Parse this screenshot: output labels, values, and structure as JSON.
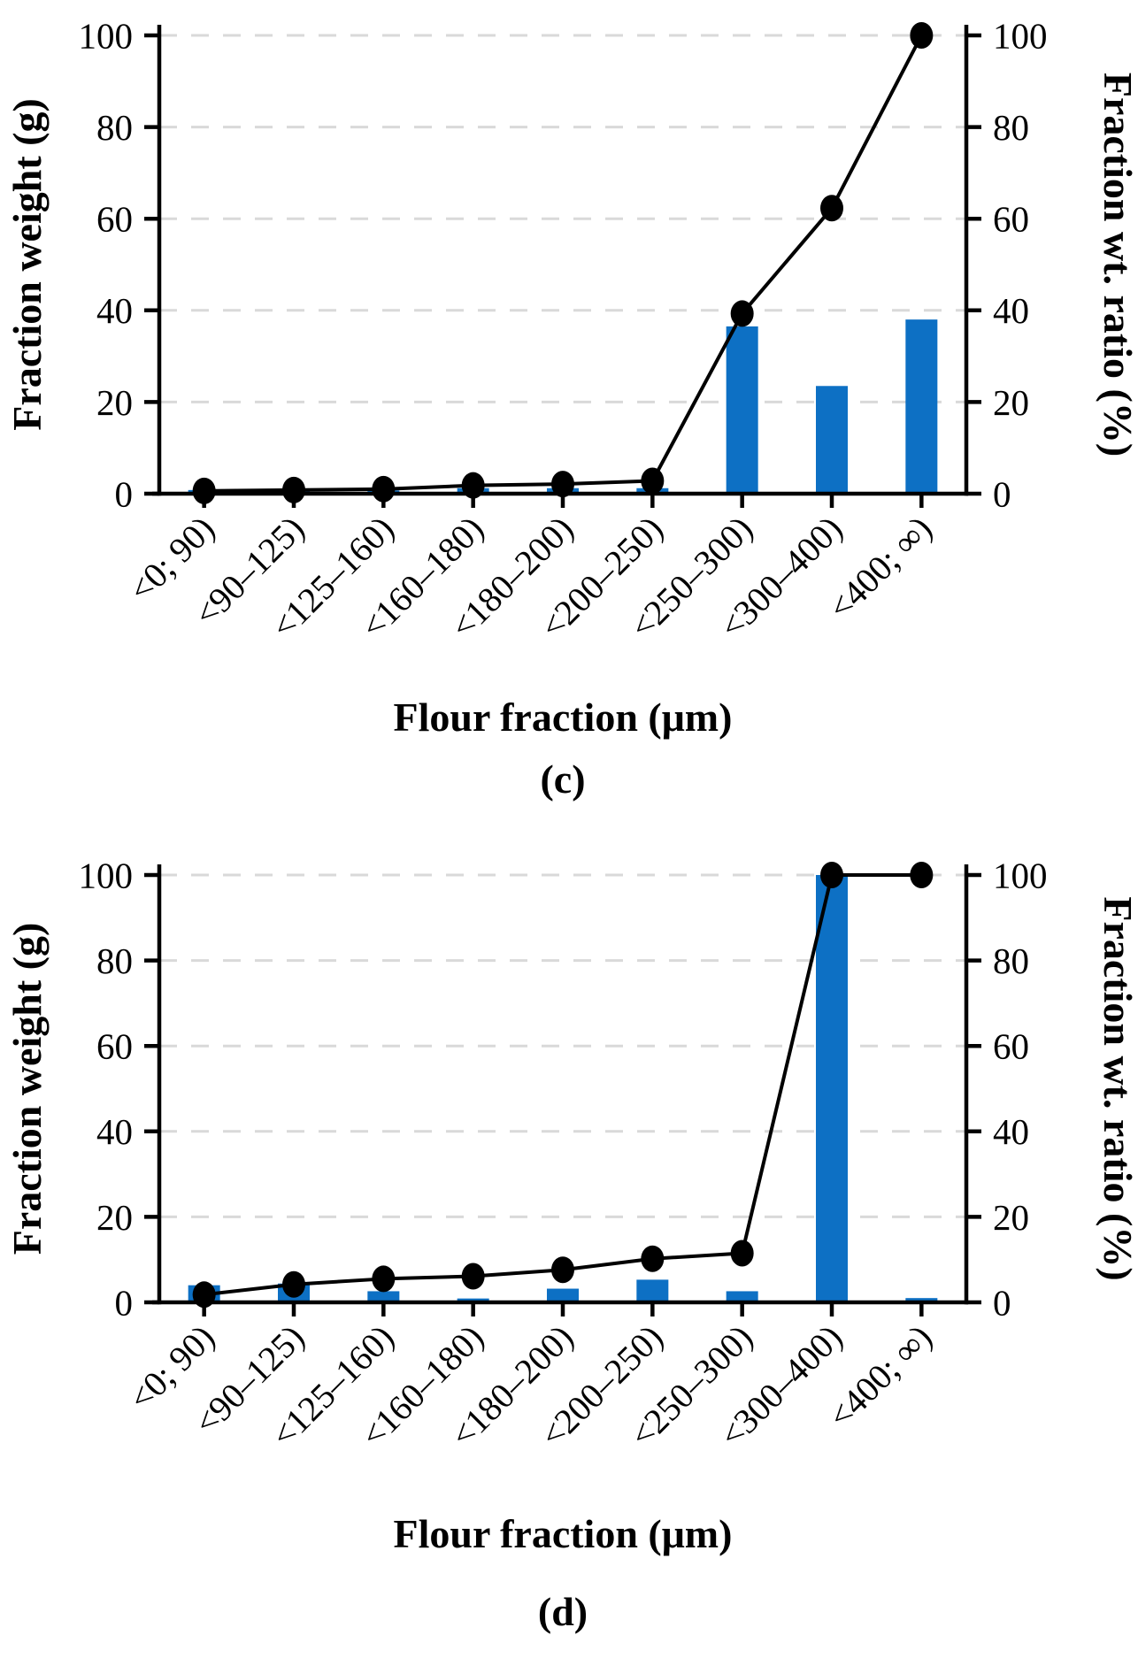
{
  "figure_style": {
    "background": "#ffffff",
    "bar_color": "#0d70c4",
    "grid_color": "#d9d9d9",
    "axis_color": "#000000",
    "line_color": "#000000",
    "marker_color": "#000000",
    "text_color": "#000000"
  },
  "chart_data": [
    {
      "type": "bar",
      "subtype": "dual-axis bar + cumulative line",
      "caption": "(c)",
      "xlabel": "Flour fraction (μm)",
      "ylabel_left": "Fraction weight (g)",
      "ylabel_right": "Fraction wt. ratio (%)",
      "ylim": [
        0,
        100
      ],
      "yticks": [
        0,
        20,
        40,
        60,
        80,
        100
      ],
      "grid": "dashed horizontal gridlines every 20",
      "legend": "none",
      "categories": [
        "<0; 90)",
        "<90–125)",
        "<125–160)",
        "<160–180)",
        "<180–200)",
        "<200–250)",
        "<250–300)",
        "<300–400)",
        "<400; ∞)"
      ],
      "series": [
        {
          "name": "Fraction weight (g)",
          "type": "bar",
          "axis": "left",
          "values": [
            0.8,
            0.8,
            0.7,
            1.2,
            1.2,
            1.2,
            36.5,
            23.5,
            38.0
          ]
        },
        {
          "name": "Fraction wt. ratio (%)",
          "type": "line",
          "axis": "right",
          "marker": "filled-circle",
          "values": [
            0.6,
            0.8,
            1.0,
            1.8,
            2.1,
            2.8,
            39.3,
            62.3,
            100.0
          ]
        }
      ]
    },
    {
      "type": "bar",
      "subtype": "dual-axis bar + cumulative line",
      "caption": "(d)",
      "xlabel": "Flour fraction (μm)",
      "ylabel_left": "Fraction weight (g)",
      "ylabel_right": "Fraction wt. ratio (%)",
      "ylim": [
        0,
        100
      ],
      "yticks": [
        0,
        20,
        40,
        60,
        80,
        100
      ],
      "grid": "dashed horizontal gridlines every 20",
      "legend": "none",
      "categories": [
        "<0; 90)",
        "<90–125)",
        "<125–160)",
        "<160–180)",
        "<180–200)",
        "<200–250)",
        "<250–300)",
        "<300–400)",
        "<400; ∞)"
      ],
      "series": [
        {
          "name": "Fraction weight (g)",
          "type": "bar",
          "axis": "left",
          "values": [
            4.0,
            4.4,
            2.6,
            0.9,
            3.2,
            5.3,
            2.6,
            100.0,
            1.0
          ]
        },
        {
          "name": "Fraction wt. ratio (%)",
          "type": "line",
          "axis": "right",
          "marker": "filled-circle",
          "values": [
            1.8,
            4.2,
            5.5,
            6.1,
            7.6,
            10.2,
            11.5,
            100.0,
            100.0
          ]
        }
      ]
    }
  ]
}
